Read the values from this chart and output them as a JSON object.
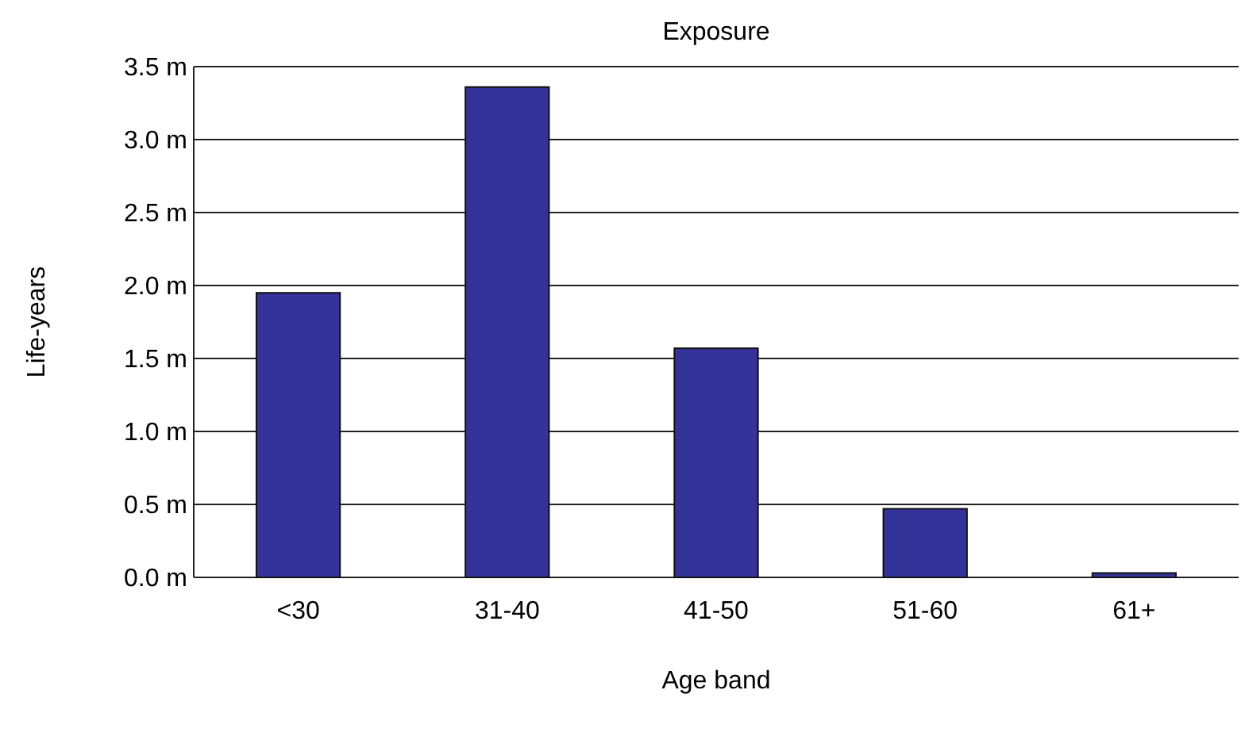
{
  "chart_data": {
    "type": "bar",
    "title": "Exposure",
    "xlabel": "Age band",
    "ylabel": "Life-years",
    "categories": [
      "<30",
      "31-40",
      "41-50",
      "51-60",
      "61+"
    ],
    "values": [
      1.95,
      3.36,
      1.57,
      0.47,
      0.03
    ],
    "color": "#333399",
    "ylim": [
      0,
      3.5
    ],
    "yticks": [
      {
        "value": 0,
        "label": "0.0 m"
      },
      {
        "value": 0.5,
        "label": "0.5 m"
      },
      {
        "value": 1,
        "label": "1.0 m"
      },
      {
        "value": 1.5,
        "label": "1.5 m"
      },
      {
        "value": 2,
        "label": "2.0 m"
      },
      {
        "value": 2.5,
        "label": "2.5 m"
      },
      {
        "value": 3,
        "label": "3.0 m"
      },
      {
        "value": 3.5,
        "label": "3.5 m"
      }
    ],
    "grid": "y"
  }
}
